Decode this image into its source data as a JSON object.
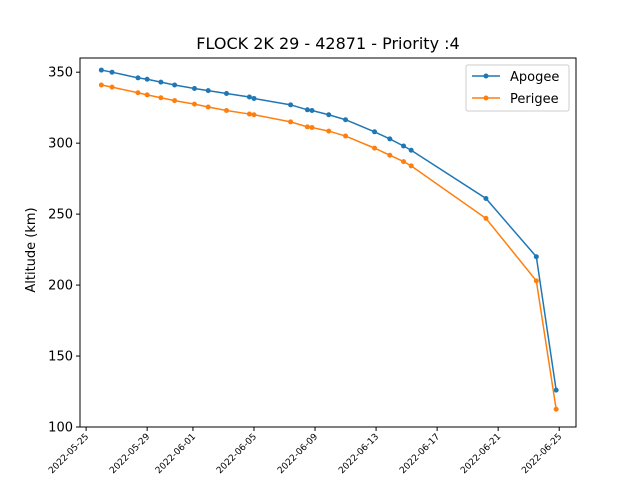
{
  "chart_data": {
    "type": "line",
    "title": "FLOCK 2K 29 - 42871 - Priority :4",
    "xlabel": "",
    "ylabel": "Altitude (km)",
    "ylim": [
      100,
      360
    ],
    "yticks": [
      100,
      150,
      200,
      250,
      300,
      350
    ],
    "xticks": [
      "2022-05-25",
      "2022-05-29",
      "2022-06-01",
      "2022-06-05",
      "2022-06-09",
      "2022-06-13",
      "2022-06-17",
      "2022-06-21",
      "2022-06-25"
    ],
    "legend_position": "top-right",
    "x": [
      "2022-05-26",
      "2022-05-26.7",
      "2022-05-28.4",
      "2022-05-29",
      "2022-05-29.9",
      "2022-05-30.8",
      "2022-06-01.1",
      "2022-06-02",
      "2022-06-03.2",
      "2022-06-04.7",
      "2022-06-05",
      "2022-06-07.4",
      "2022-06-08.5",
      "2022-06-08.8",
      "2022-06-09.9",
      "2022-06-11",
      "2022-06-12.9",
      "2022-06-13.9",
      "2022-06-14.8",
      "2022-06-15.3",
      "2022-06-20.2",
      "2022-06-23.5",
      "2022-06-24.8"
    ],
    "series": [
      {
        "name": "Apogee",
        "color": "#1f77b4",
        "values": [
          351.5,
          350,
          346,
          345,
          343,
          341,
          338.5,
          337,
          335,
          332.5,
          331.5,
          327,
          323.5,
          323,
          320,
          316.5,
          308,
          303,
          298,
          295,
          261,
          220,
          126
        ]
      },
      {
        "name": "Perigee",
        "color": "#ff7f0e",
        "values": [
          341,
          339.5,
          335.5,
          334,
          332,
          330,
          327.5,
          325.5,
          323,
          320.5,
          320,
          315,
          311.5,
          311,
          308.5,
          305,
          296.5,
          291.5,
          287,
          284,
          247,
          203,
          112.5
        ]
      }
    ]
  }
}
